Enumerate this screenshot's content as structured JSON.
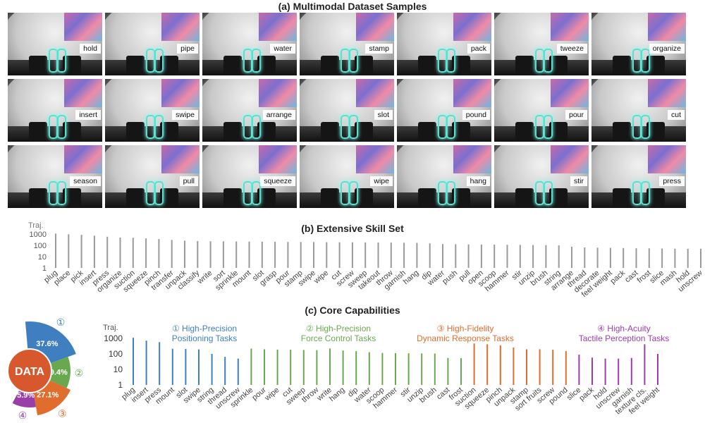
{
  "panel_a": {
    "title": "(a) Multimodal Dataset Samples",
    "samples": [
      "hold",
      "pipe",
      "water",
      "stamp",
      "pack",
      "tweeze",
      "organize",
      "insert",
      "swipe",
      "arrange",
      "slot",
      "pound",
      "pour",
      "cut",
      "season",
      "pull",
      "squeeze",
      "wipe",
      "hang",
      "stir",
      "press"
    ]
  },
  "panel_b": {
    "title": "(b) Extensive Skill Set"
  },
  "panel_c": {
    "title": "(c) Core Capabilities",
    "donut_center": "DATA",
    "groups": [
      {
        "num": "①",
        "line1": "High-Precision",
        "line2": "Positioning Tasks",
        "pct": "37.6%",
        "color": "#3f7fbf"
      },
      {
        "num": "②",
        "line1": "High-Precision",
        "line2": "Force Control Tasks",
        "pct": "29.4%",
        "color": "#6aa84f"
      },
      {
        "num": "③",
        "line1": "High-Fidelity",
        "line2": "Dynamic Response Tasks",
        "pct": "27.1%",
        "color": "#e06c2e"
      },
      {
        "num": "④",
        "line1": "High-Acuity",
        "line2": "Tactile Perception Tasks",
        "pct": "5.9%",
        "color": "#9b3fa8"
      }
    ]
  },
  "chart_data": [
    {
      "type": "bar",
      "title": "(b) Extensive Skill Set",
      "ylabel": "Traj.",
      "yscale": "log",
      "ylim": [
        1,
        1000
      ],
      "yticks": [
        "1",
        "10",
        "100",
        "1000"
      ],
      "color": "#9a9a9a",
      "categories": [
        "plug",
        "place",
        "pick",
        "insert",
        "press",
        "organize",
        "suction",
        "squeeze",
        "pinch",
        "transfer",
        "unpack",
        "classify",
        "write",
        "sort",
        "sprinkle",
        "mount",
        "slot",
        "grasp",
        "pour",
        "stamp",
        "swipe",
        "wipe",
        "cut",
        "screw",
        "sweep",
        "takeout",
        "throw",
        "garnish",
        "hang",
        "dip",
        "water",
        "push",
        "pull",
        "open",
        "scoop",
        "hammer",
        "stir",
        "unzip",
        "brush",
        "string",
        "arrange",
        "thread",
        "decorate",
        "feel weight",
        "pack",
        "cast",
        "frost",
        "slice",
        "mash",
        "hold",
        "unscrew"
      ],
      "values": [
        1100,
        950,
        850,
        720,
        580,
        500,
        470,
        420,
        360,
        300,
        260,
        240,
        230,
        225,
        220,
        215,
        210,
        205,
        200,
        198,
        195,
        190,
        188,
        185,
        180,
        178,
        175,
        170,
        165,
        150,
        130,
        125,
        120,
        118,
        115,
        112,
        110,
        108,
        105,
        100,
        75,
        65,
        62,
        60,
        58,
        55,
        54,
        52,
        51,
        50,
        50
      ]
    },
    {
      "type": "bar",
      "title": "(c) Core Capabilities",
      "ylabel": "Traj.",
      "yscale": "log",
      "ylim": [
        1,
        1000
      ],
      "yticks": [
        "1",
        "10",
        "100",
        "1000"
      ],
      "series": [
        {
          "group": 1,
          "color": "#3f7fbf",
          "categories": [
            "plug",
            "insert",
            "press",
            "mount",
            "slot",
            "swipe",
            "string",
            "thread",
            "unscrew"
          ],
          "values": [
            1100,
            720,
            580,
            215,
            210,
            195,
            100,
            65,
            50
          ]
        },
        {
          "group": 2,
          "color": "#6aa84f",
          "categories": [
            "sprinkle",
            "pour",
            "wipe",
            "cut",
            "sweep",
            "throw",
            "write",
            "hang",
            "dip",
            "water",
            "scoop",
            "hammer",
            "stir",
            "unzip",
            "brush",
            "cast",
            "frost"
          ],
          "values": [
            220,
            200,
            190,
            188,
            180,
            175,
            225,
            165,
            150,
            130,
            115,
            112,
            110,
            108,
            105,
            55,
            54
          ]
        },
        {
          "group": 3,
          "color": "#e06c2e",
          "categories": [
            "suction",
            "squeeze",
            "pinch",
            "unpack",
            "stamp",
            "sort fruits",
            "screw",
            "pound"
          ],
          "values": [
            470,
            420,
            360,
            260,
            198,
            200,
            185,
            150
          ]
        },
        {
          "group": 4,
          "color": "#9b3fa8",
          "categories": [
            "slice",
            "pack",
            "hold",
            "unscrew",
            "garnish",
            "texture cls.",
            "feel weight"
          ],
          "values": [
            90,
            58,
            50,
            50,
            55,
            420,
            100
          ]
        }
      ]
    }
  ]
}
